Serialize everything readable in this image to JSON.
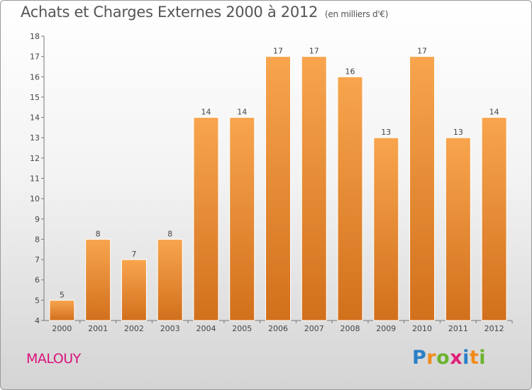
{
  "header": {
    "title": "Achats et Charges Externes 2000 à 2012",
    "subtitle": "(en milliers d'€)"
  },
  "footer": {
    "city": "MALOUY",
    "logo_letters": [
      "P",
      "r",
      "o",
      "x",
      "i",
      "t",
      "i"
    ],
    "logo_colors": [
      "#2a7fc7",
      "#f28a1c",
      "#6bb32e",
      "#e2207a",
      "#2a7fc7",
      "#f28a1c",
      "#6bb32e"
    ]
  },
  "colors": {
    "bar_light": "#f8a54e",
    "bar_dark": "#d2701c",
    "title": "#555555",
    "city": "#d9127a"
  },
  "chart_data": {
    "type": "bar",
    "title": "Achats et Charges Externes 2000 à 2012",
    "subtitle": "(en milliers d'€)",
    "categories": [
      "2000",
      "2001",
      "2002",
      "2003",
      "2004",
      "2005",
      "2006",
      "2007",
      "2008",
      "2009",
      "2010",
      "2011",
      "2012"
    ],
    "values": [
      5,
      8,
      7,
      8,
      14,
      14,
      17,
      17,
      16,
      13,
      17,
      13,
      14
    ],
    "ylim": [
      4,
      18
    ],
    "yticks": [
      4,
      5,
      6,
      7,
      8,
      9,
      10,
      11,
      12,
      13,
      14,
      15,
      16,
      17,
      18
    ],
    "grid": false
  }
}
